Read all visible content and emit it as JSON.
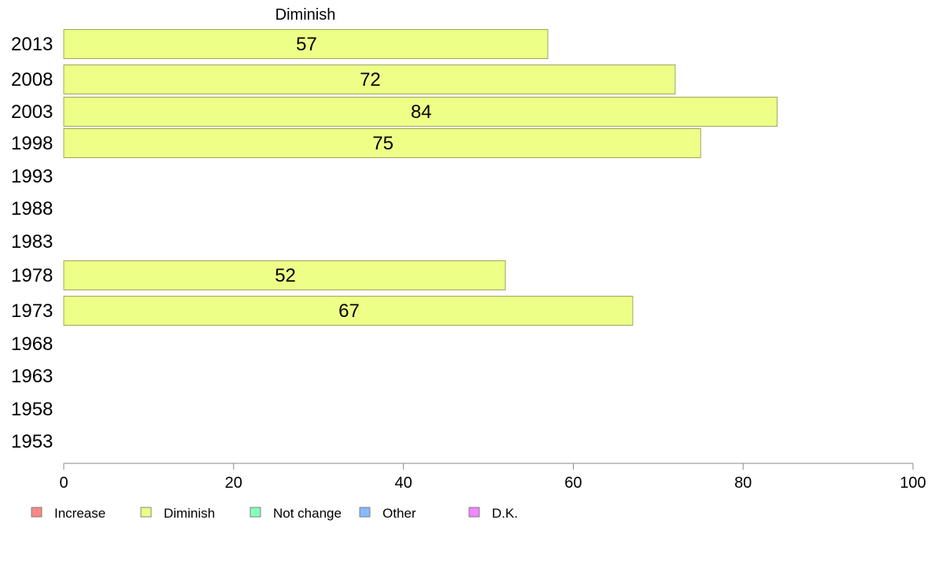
{
  "chart_data": {
    "type": "bar",
    "orientation": "horizontal",
    "title": "Diminish",
    "categories": [
      "2013",
      "2008",
      "2003",
      "1998",
      "1993",
      "1988",
      "1983",
      "1978",
      "1973",
      "1968",
      "1963",
      "1958",
      "1953"
    ],
    "series": [
      {
        "name": "Diminish",
        "color": "#eeff88",
        "values": [
          57,
          72,
          84,
          75,
          null,
          null,
          null,
          52,
          67,
          null,
          null,
          null,
          null
        ]
      }
    ],
    "xlim": [
      0,
      100
    ],
    "xticks": [
      0,
      20,
      40,
      60,
      80,
      100
    ],
    "grid": false,
    "legend": {
      "placement": "bottom",
      "items": [
        {
          "name": "Increase",
          "color": "#ff8888"
        },
        {
          "name": "Diminish",
          "color": "#eeff88"
        },
        {
          "name": "Not change",
          "color": "#88ffbb"
        },
        {
          "name": "Other",
          "color": "#88bbff"
        },
        {
          "name": "D.K.",
          "color": "#ee88ff"
        }
      ]
    }
  }
}
